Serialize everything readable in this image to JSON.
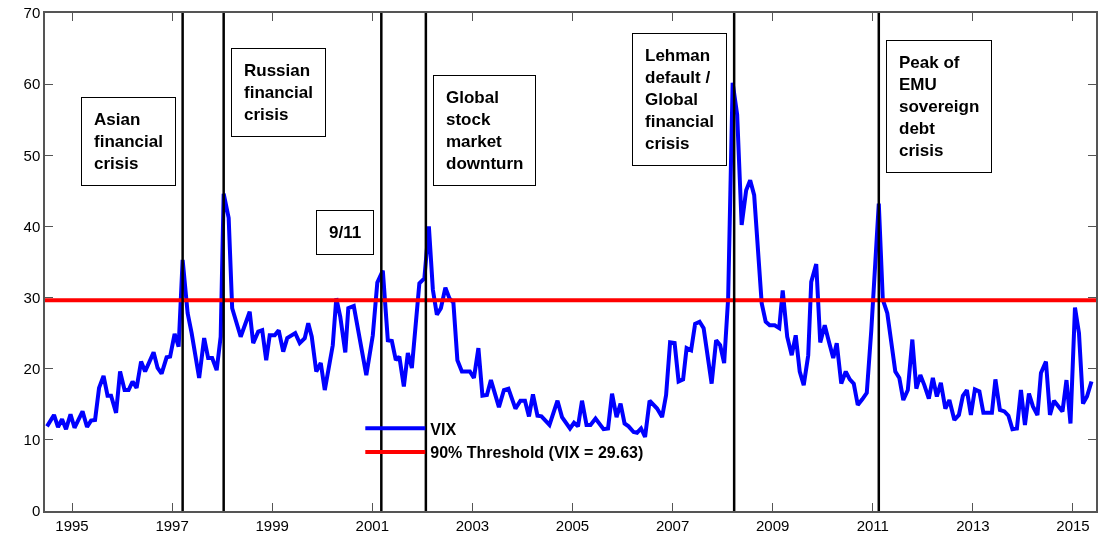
{
  "chart_data": {
    "type": "line",
    "xlim": [
      1994.46,
      2015.46
    ],
    "ylim": [
      0,
      70
    ],
    "xticks": [
      1995,
      1997,
      1999,
      2001,
      2003,
      2005,
      2007,
      2009,
      2011,
      2013,
      2015
    ],
    "yticks": [
      0,
      10,
      20,
      30,
      40,
      50,
      60,
      70
    ],
    "grid": false,
    "legend": "bottom",
    "marker": "none",
    "line_style": "solid",
    "series": [
      {
        "name": "VIX",
        "color": "#0000ff",
        "x": [
          1994.5,
          1994.64,
          1994.72,
          1994.8,
          1994.88,
          1994.97,
          1995.05,
          1995.21,
          1995.3,
          1995.38,
          1995.46,
          1995.54,
          1995.63,
          1995.71,
          1995.78,
          1995.88,
          1995.96,
          1996.05,
          1996.13,
          1996.21,
          1996.29,
          1996.38,
          1996.46,
          1996.63,
          1996.71,
          1996.79,
          1996.89,
          1996.96,
          1997.05,
          1997.13,
          1997.21,
          1997.31,
          1997.39,
          1997.54,
          1997.64,
          1997.72,
          1997.8,
          1997.89,
          1997.97,
          1998.03,
          1998.13,
          1998.2,
          1998.37,
          1998.55,
          1998.62,
          1998.72,
          1998.8,
          1998.88,
          1998.95,
          1999.05,
          1999.13,
          1999.22,
          1999.3,
          1999.46,
          1999.55,
          1999.65,
          1999.72,
          1999.79,
          1999.88,
          1999.97,
          2000.05,
          2000.21,
          2000.28,
          2000.36,
          2000.46,
          2000.52,
          2000.63,
          2000.88,
          2001.01,
          2001.1,
          2001.21,
          2001.31,
          2001.39,
          2001.47,
          2001.54,
          2001.63,
          2001.71,
          2001.79,
          2001.94,
          2002.04,
          2002.13,
          2002.21,
          2002.29,
          2002.37,
          2002.46,
          2002.54,
          2002.62,
          2002.7,
          2002.79,
          2002.95,
          2003.03,
          2003.12,
          2003.2,
          2003.29,
          2003.37,
          2003.53,
          2003.63,
          2003.72,
          2003.86,
          2003.96,
          2004.05,
          2004.13,
          2004.21,
          2004.3,
          2004.38,
          2004.54,
          2004.7,
          2004.79,
          2004.95,
          2005.03,
          2005.11,
          2005.19,
          2005.28,
          2005.36,
          2005.46,
          2005.62,
          2005.71,
          2005.79,
          2005.88,
          2005.96,
          2006.04,
          2006.12,
          2006.22,
          2006.29,
          2006.37,
          2006.45,
          2006.54,
          2006.69,
          2006.79,
          2006.87,
          2006.95,
          2007.04,
          2007.12,
          2007.21,
          2007.28,
          2007.37,
          2007.45,
          2007.54,
          2007.62,
          2007.78,
          2007.87,
          2007.95,
          2008.03,
          2008.11,
          2008.2,
          2008.29,
          2008.38,
          2008.47,
          2008.55,
          2008.63,
          2008.78,
          2008.86,
          2008.94,
          2009.04,
          2009.13,
          2009.2,
          2009.29,
          2009.38,
          2009.46,
          2009.54,
          2009.62,
          2009.71,
          2009.77,
          2009.87,
          2009.95,
          2010.04,
          2010.13,
          2010.21,
          2010.28,
          2010.37,
          2010.46,
          2010.54,
          2010.62,
          2010.7,
          2010.79,
          2010.88,
          2010.97,
          2011.12,
          2011.2,
          2011.29,
          2011.45,
          2011.53,
          2011.61,
          2011.7,
          2011.79,
          2011.87,
          2011.95,
          2012.03,
          2012.12,
          2012.2,
          2012.28,
          2012.36,
          2012.45,
          2012.53,
          2012.63,
          2012.72,
          2012.8,
          2012.88,
          2012.96,
          2013.04,
          2013.13,
          2013.21,
          2013.38,
          2013.45,
          2013.54,
          2013.63,
          2013.71,
          2013.79,
          2013.88,
          2013.96,
          2014.04,
          2014.12,
          2014.2,
          2014.29,
          2014.36,
          2014.46,
          2014.54,
          2014.62,
          2014.79,
          2014.87,
          2014.95,
          2015.04,
          2015.12,
          2015.2,
          2015.28,
          2015.37
        ],
        "values": [
          11.9,
          13.5,
          11.8,
          12.9,
          11.5,
          13.6,
          11.7,
          14.0,
          11.8,
          12.7,
          12.8,
          17.3,
          19.0,
          16.2,
          16.2,
          13.8,
          19.6,
          17.0,
          17.0,
          18.2,
          17.3,
          21.0,
          19.6,
          22.3,
          20.1,
          19.3,
          21.6,
          21.7,
          24.9,
          23.1,
          35.3,
          27.8,
          25.0,
          18.7,
          24.3,
          21.5,
          21.5,
          19.8,
          24.5,
          44.6,
          41.2,
          28.5,
          24.5,
          28.0,
          23.6,
          25.2,
          25.4,
          21.2,
          24.7,
          24.7,
          25.4,
          22.4,
          24.3,
          25.0,
          23.6,
          24.3,
          26.4,
          24.5,
          19.6,
          20.8,
          17.0,
          23.3,
          29.9,
          27.3,
          22.3,
          28.5,
          28.8,
          19.1,
          24.7,
          32.1,
          33.8,
          24.0,
          23.9,
          21.2,
          21.7,
          17.5,
          22.2,
          20.1,
          32.0,
          32.7,
          40.0,
          31.1,
          27.6,
          28.5,
          31.4,
          29.9,
          29.3,
          21.2,
          19.6,
          19.6,
          18.7,
          22.9,
          16.2,
          16.3,
          18.4,
          14.6,
          17.0,
          17.2,
          14.4,
          15.5,
          15.5,
          13.3,
          16.4,
          13.4,
          13.3,
          12.1,
          15.5,
          13.2,
          11.6,
          12.4,
          11.9,
          15.5,
          12.1,
          12.1,
          13.0,
          11.5,
          11.6,
          16.5,
          13.2,
          15.1,
          12.3,
          11.9,
          11.1,
          11.0,
          11.6,
          10.4,
          15.5,
          14.4,
          13.2,
          16.3,
          23.7,
          23.6,
          18.2,
          18.5,
          22.9,
          22.6,
          26.3,
          26.6,
          25.7,
          17.9,
          24.0,
          23.3,
          20.8,
          29.9,
          60.2,
          55.7,
          40.2,
          45.1,
          46.5,
          44.4,
          29.2,
          26.6,
          26.1,
          26.1,
          25.7,
          31.0,
          24.5,
          21.9,
          24.7,
          19.6,
          17.7,
          21.9,
          32.2,
          34.7,
          23.7,
          26.1,
          23.6,
          21.5,
          23.6,
          17.9,
          19.6,
          18.5,
          17.9,
          14.9,
          15.7,
          16.6,
          25.4,
          43.2,
          29.7,
          27.8,
          19.6,
          18.7,
          15.6,
          17.0,
          24.1,
          17.2,
          19.1,
          17.7,
          15.8,
          18.7,
          16.1,
          18.0,
          14.4,
          15.6,
          12.8,
          13.5,
          16.2,
          17.0,
          13.5,
          17.1,
          16.8,
          13.8,
          13.8,
          18.5,
          14.2,
          14.0,
          13.4,
          11.5,
          11.6,
          17.0,
          12.1,
          16.5,
          14.7,
          13.5,
          19.4,
          21.0,
          13.5,
          15.5,
          14.0,
          18.4,
          12.3,
          28.6,
          25.0,
          15.1,
          16.1,
          18.2
        ]
      },
      {
        "name": "90% Threshold (VIX = 29.63)",
        "color": "#ff0000",
        "x": [
          1994.46,
          2015.46
        ],
        "values": [
          29.63,
          29.63
        ]
      }
    ],
    "ref_lines": [
      {
        "axis": "x",
        "value": 1997.21,
        "color": "#000000"
      },
      {
        "axis": "x",
        "value": 1998.03,
        "color": "#000000"
      },
      {
        "axis": "x",
        "value": 2001.18,
        "color": "#000000"
      },
      {
        "axis": "x",
        "value": 2002.07,
        "color": "#000000"
      },
      {
        "axis": "x",
        "value": 2008.23,
        "color": "#000000"
      },
      {
        "axis": "x",
        "value": 2011.12,
        "color": "#000000"
      }
    ],
    "annotations": [
      "Asian\nfinancial\ncrisis",
      "Russian\nfinancial\ncrisis",
      "9/11",
      "Global\nstock\nmarket\ndownturn",
      "Lehman\ndefault /\nGlobal\nfinancial\ncrisis",
      "Peak of\nEMU\nsovereign\ndebt\ncrisis"
    ]
  }
}
